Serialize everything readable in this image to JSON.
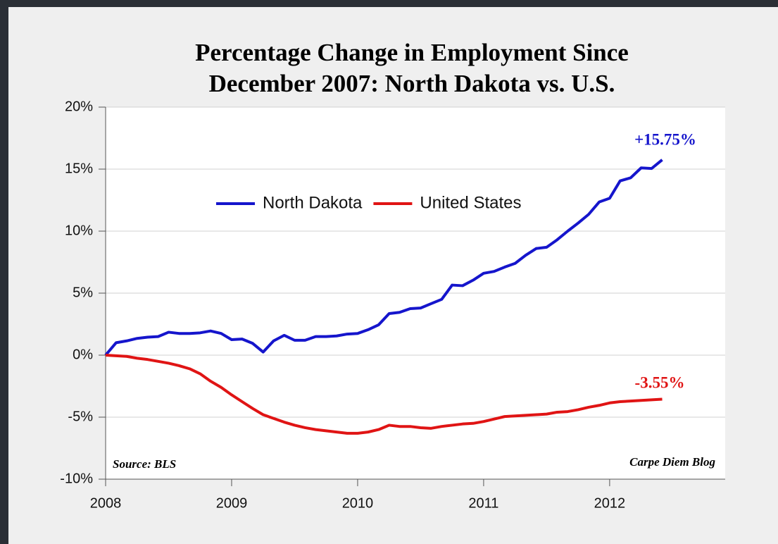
{
  "chart_data": {
    "type": "line",
    "title": [
      "Percentage Change in Employment Since",
      "December 2007: North Dakota vs. U.S."
    ],
    "x": [
      2008,
      2008.083,
      2008.167,
      2008.25,
      2008.333,
      2008.417,
      2008.5,
      2008.583,
      2008.667,
      2008.75,
      2008.833,
      2008.917,
      2009,
      2009.083,
      2009.167,
      2009.25,
      2009.333,
      2009.417,
      2009.5,
      2009.583,
      2009.667,
      2009.75,
      2009.833,
      2009.917,
      2010,
      2010.083,
      2010.167,
      2010.25,
      2010.333,
      2010.417,
      2010.5,
      2010.583,
      2010.667,
      2010.75,
      2010.833,
      2010.917,
      2011,
      2011.083,
      2011.167,
      2011.25,
      2011.333,
      2011.417,
      2011.5,
      2011.583,
      2011.667,
      2011.75,
      2011.833,
      2011.917,
      2012,
      2012.083,
      2012.167,
      2012.25,
      2012.333,
      2012.417
    ],
    "series": [
      {
        "name": "North Dakota",
        "color": "#1515cc",
        "values": [
          0,
          1.0,
          1.15,
          1.35,
          1.45,
          1.5,
          1.85,
          1.75,
          1.75,
          1.8,
          1.95,
          1.75,
          1.25,
          1.3,
          0.95,
          0.25,
          1.15,
          1.6,
          1.2,
          1.2,
          1.5,
          1.5,
          1.55,
          1.7,
          1.75,
          2.05,
          2.45,
          3.35,
          3.45,
          3.75,
          3.8,
          4.15,
          4.5,
          5.65,
          5.6,
          6.05,
          6.6,
          6.75,
          7.1,
          7.4,
          8.05,
          8.6,
          8.7,
          9.3,
          10.0,
          10.65,
          11.35,
          12.35,
          12.65,
          14.05,
          14.3,
          15.1,
          15.05,
          15.75
        ]
      },
      {
        "name": "United States",
        "color": "#e01414",
        "values": [
          0,
          -0.05,
          -0.1,
          -0.25,
          -0.35,
          -0.5,
          -0.65,
          -0.85,
          -1.1,
          -1.5,
          -2.1,
          -2.6,
          -3.2,
          -3.75,
          -4.3,
          -4.8,
          -5.1,
          -5.4,
          -5.65,
          -5.85,
          -6.0,
          -6.1,
          -6.2,
          -6.3,
          -6.3,
          -6.2,
          -6.0,
          -5.65,
          -5.75,
          -5.75,
          -5.85,
          -5.9,
          -5.75,
          -5.65,
          -5.55,
          -5.5,
          -5.35,
          -5.15,
          -4.95,
          -4.9,
          -4.85,
          -4.8,
          -4.75,
          -4.6,
          -4.55,
          -4.4,
          -4.2,
          -4.05,
          -3.85,
          -3.75,
          -3.7,
          -3.65,
          -3.6,
          -3.55
        ]
      }
    ],
    "annotations": [
      "+15.75%",
      "-3.55%"
    ],
    "source": "Source: BLS",
    "credit": "Carpe Diem Blog",
    "xlim": [
      2008,
      2012.917
    ],
    "xticks": [
      2008,
      2009,
      2010,
      2011,
      2012
    ],
    "ylim": [
      -10,
      20
    ],
    "yticks": [
      {
        "value": -10,
        "label": "-10%"
      },
      {
        "value": -5,
        "label": "-5%"
      },
      {
        "value": 0,
        "label": "0%"
      },
      {
        "value": 5,
        "label": "5%"
      },
      {
        "value": 10,
        "label": "10%"
      },
      {
        "value": 15,
        "label": "15%"
      },
      {
        "value": 20,
        "label": "20%"
      }
    ],
    "grid": true,
    "legend": "upper center"
  }
}
